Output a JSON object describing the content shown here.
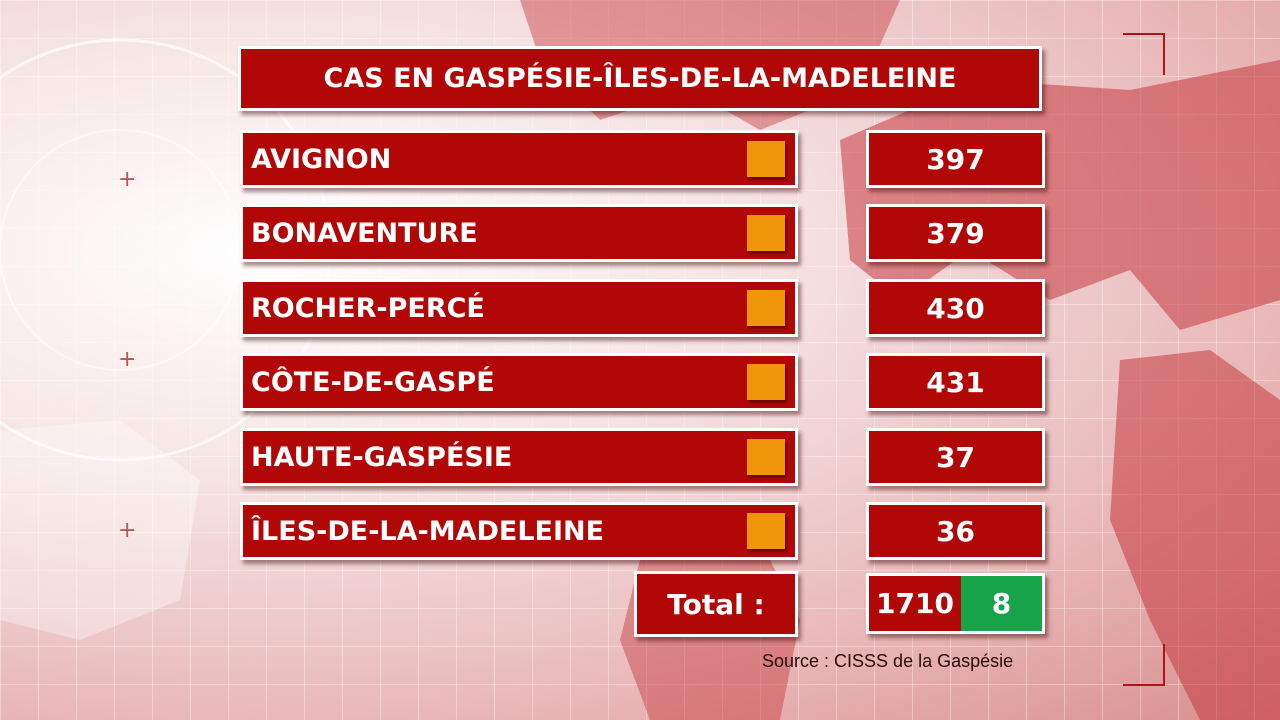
{
  "title": "CAS EN GASPÉSIE-ÎLES-DE-LA-MADELEINE",
  "regions": [
    {
      "name": "AVIGNON",
      "value": "397"
    },
    {
      "name": "BONAVENTURE",
      "value": "379"
    },
    {
      "name": "ROCHER-PERCÉ",
      "value": "430"
    },
    {
      "name": "CÔTE-DE-GASPÉ",
      "value": "431"
    },
    {
      "name": "HAUTE-GASPÉSIE",
      "value": "37"
    },
    {
      "name": "ÎLES-DE-LA-MADELEINE",
      "value": "36"
    }
  ],
  "total": {
    "label": "Total :",
    "value": "1710",
    "new": "8"
  },
  "source": "Source : CISSS de la Gaspésie",
  "colors": {
    "panel": "#b10707",
    "marker": "#f0960a",
    "new_cases": "#16a34a"
  }
}
